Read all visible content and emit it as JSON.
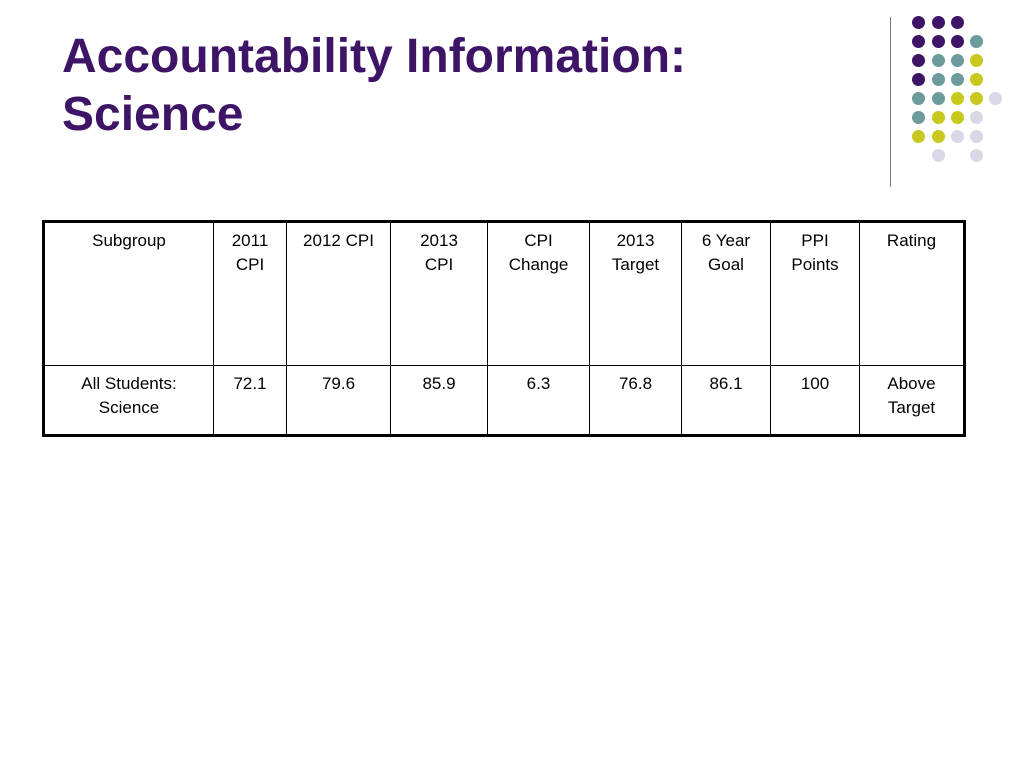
{
  "slide": {
    "title_line1": "Accountability Information:",
    "title_line2": "Science"
  },
  "colors": {
    "title": "#3d1466",
    "dot_purple": "#3d1466",
    "dot_teal": "#6b9b9b",
    "dot_yellow": "#c8c81e",
    "dot_lavender": "#d8d8e6"
  },
  "decor_dots": [
    "purple",
    "purple",
    "purple",
    "purple",
    "purple",
    "purple",
    "teal",
    "purple",
    "teal",
    "teal",
    "yellow",
    "purple",
    "teal",
    "teal",
    "yellow",
    "teal",
    "teal",
    "yellow",
    "yellow",
    "lavender",
    "teal",
    "yellow",
    "yellow",
    "lavender",
    "yellow",
    "yellow",
    "lavender",
    "lavender",
    "lavender",
    "lavender"
  ],
  "table": {
    "headers": [
      "Subgroup",
      "2011\nCPI",
      "2012 CPI",
      "2013\nCPI",
      "CPI\nChange",
      "2013\nTarget",
      "6 Year\nGoal",
      "PPI\nPoints",
      "Rating"
    ],
    "rows": [
      [
        "All Students:\nScience",
        "72.1",
        "79.6",
        "85.9",
        "6.3",
        "76.8",
        "86.1",
        "100",
        "Above\nTarget"
      ]
    ]
  }
}
